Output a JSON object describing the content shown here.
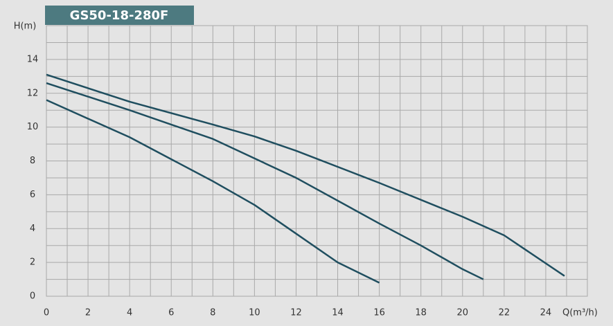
{
  "chart_data": {
    "type": "line",
    "title": "GS50-18-280F",
    "ylabel": "H(m)",
    "xlabel": "Q(m³/h)",
    "xlim": [
      0,
      26
    ],
    "ylim": [
      0,
      16
    ],
    "xticks": [
      0,
      2,
      4,
      6,
      8,
      10,
      12,
      14,
      16,
      18,
      20,
      22,
      24
    ],
    "yticks": [
      0,
      2,
      4,
      6,
      8,
      10,
      12,
      14
    ],
    "grid": true,
    "series": [
      {
        "color": "#1f4e5f",
        "x": [
          0,
          4,
          8,
          10,
          12,
          16,
          20,
          22,
          24.9
        ],
        "values": [
          13.1,
          11.5,
          10.15,
          9.45,
          8.6,
          6.7,
          4.7,
          3.6,
          1.2
        ]
      },
      {
        "color": "#1f4e5f",
        "x": [
          0,
          4,
          8,
          12,
          16,
          18,
          20,
          21
        ],
        "values": [
          12.6,
          11.0,
          9.3,
          7.0,
          4.3,
          3.0,
          1.6,
          1.0
        ]
      },
      {
        "color": "#1f4e5f",
        "x": [
          0,
          4,
          8,
          10,
          12,
          14,
          16
        ],
        "values": [
          11.6,
          9.4,
          6.8,
          5.4,
          3.7,
          2.0,
          0.8
        ]
      }
    ]
  }
}
